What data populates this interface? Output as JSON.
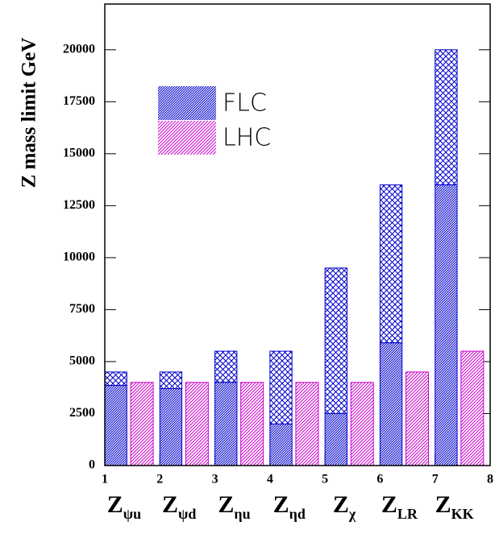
{
  "chart_data": {
    "type": "bar",
    "y_label": "Z mass limit GeV",
    "categories": [
      {
        "base": "Z",
        "sub": "ψu"
      },
      {
        "base": "Z",
        "sub": "ψd"
      },
      {
        "base": "Z",
        "sub": "ηu"
      },
      {
        "base": "Z",
        "sub": "ηd"
      },
      {
        "base": "Z",
        "sub": "χ"
      },
      {
        "base": "Z",
        "sub": "LR"
      },
      {
        "base": "Z",
        "sub": "KK"
      }
    ],
    "series": [
      {
        "name": "FLC",
        "color": "#0000cc",
        "lower": [
          3850,
          3700,
          4000,
          2000,
          2500,
          5900,
          13500
        ],
        "values": [
          4500,
          4500,
          5500,
          5500,
          9500,
          13500,
          20000
        ]
      },
      {
        "name": "LHC",
        "color": "#cc00cc",
        "values": [
          4000,
          4000,
          4000,
          4000,
          4000,
          4500,
          5500
        ]
      }
    ],
    "xlim": [
      1,
      8
    ],
    "xticks": [
      1,
      2,
      3,
      4,
      5,
      6,
      7,
      8
    ],
    "ylim": [
      0,
      22200
    ],
    "yticks": [
      0,
      2500,
      5000,
      7500,
      10000,
      12500,
      15000,
      17500,
      20000
    ]
  }
}
